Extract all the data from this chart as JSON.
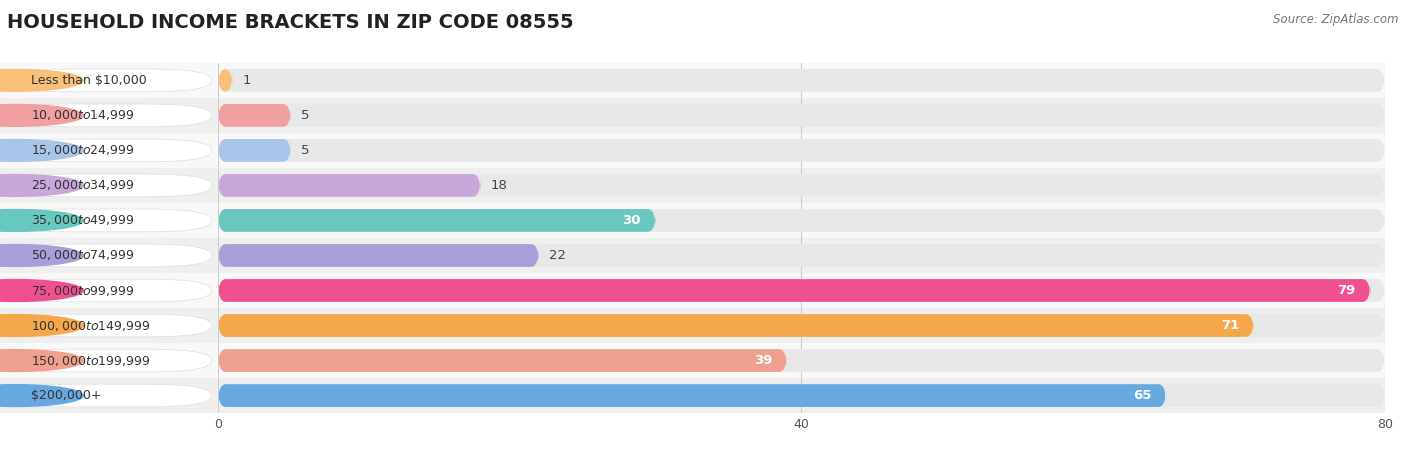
{
  "title": "HOUSEHOLD INCOME BRACKETS IN ZIP CODE 08555",
  "source": "Source: ZipAtlas.com",
  "categories": [
    "Less than $10,000",
    "$10,000 to $14,999",
    "$15,000 to $24,999",
    "$25,000 to $34,999",
    "$35,000 to $49,999",
    "$50,000 to $74,999",
    "$75,000 to $99,999",
    "$100,000 to $149,999",
    "$150,000 to $199,999",
    "$200,000+"
  ],
  "values": [
    1,
    5,
    5,
    18,
    30,
    22,
    79,
    71,
    39,
    65
  ],
  "colors": [
    "#F9C07A",
    "#F0A0A0",
    "#A8C4E8",
    "#C8A8D8",
    "#68C8C0",
    "#A8A0D8",
    "#F05090",
    "#F4A84A",
    "#F0A090",
    "#68A8E0"
  ],
  "xlim": [
    0,
    80
  ],
  "xticks": [
    0,
    40,
    80
  ],
  "bg_color": "#f0f0f0",
  "row_bg_odd": "#f8f8f8",
  "row_bg_even": "#efefef",
  "bar_bg": "#e8e8e8",
  "title_fontsize": 14,
  "label_fontsize": 9.5,
  "value_fontsize": 9.5,
  "bar_height": 0.65
}
